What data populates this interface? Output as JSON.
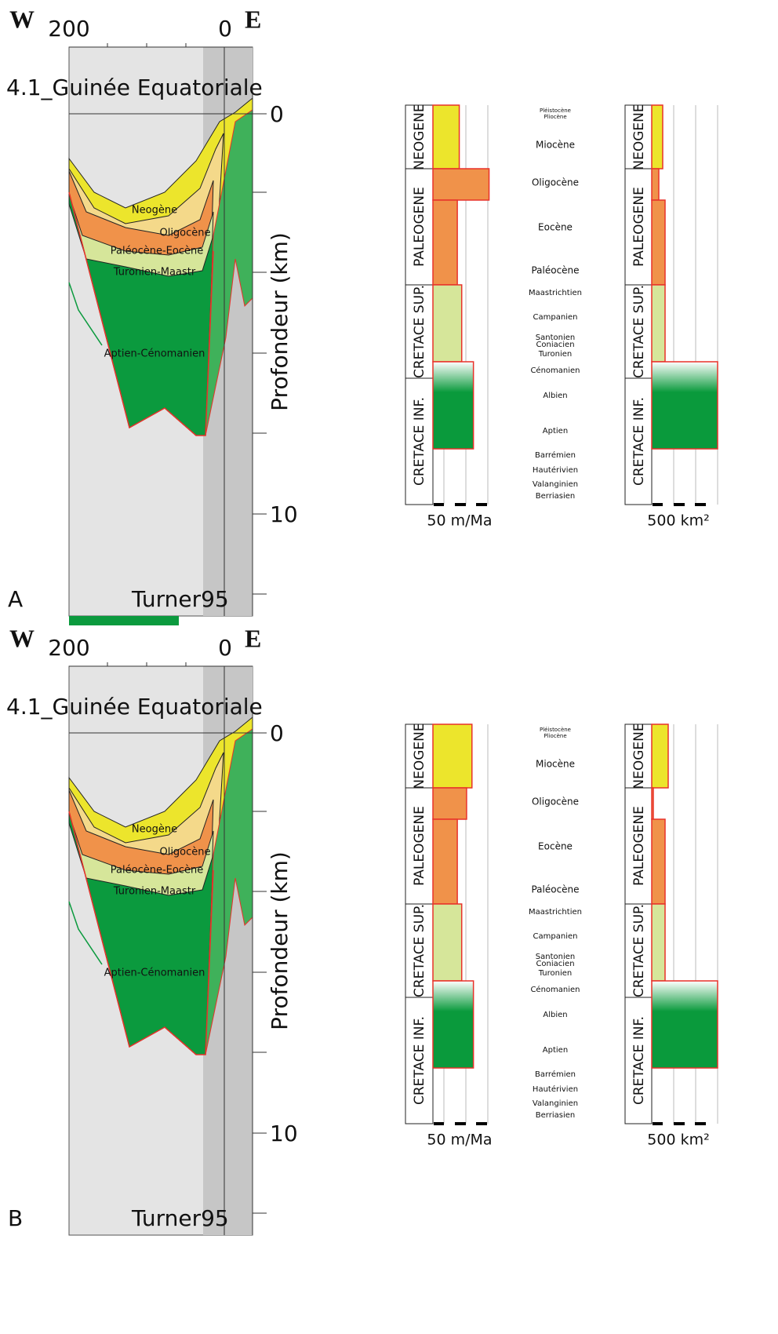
{
  "periods": [
    "NEOGENE",
    "PALEOGENE",
    "CRETACE SUP.",
    "CRETACE INF."
  ],
  "stages": [
    "Pléistocène",
    "Pliocène",
    "Miocène",
    "Oligocène",
    "Eocène",
    "Paléocène",
    "Maastrichtien",
    "Campanien",
    "Santonien",
    "Coniacien",
    "Turonien",
    "Cénomanien",
    "Albien",
    "Aptien",
    "Barrémien",
    "Hautérivien",
    "Valanginien",
    "Berriasien"
  ],
  "panels": [
    {
      "label": "A",
      "reference": "Turner95",
      "west": "W",
      "east": "E",
      "distance_ticks": [
        200,
        0
      ],
      "title": "4.1_Guinée Equatoriale",
      "depth_ticks": [
        0,
        10
      ],
      "depth_label": "Profondeur (km)",
      "layers": [
        "Neogène",
        "Oligocène",
        "Paléocène-Eocène",
        "Turonien-Maastr",
        "Aptien-Cénomanien"
      ],
      "rate": {
        "unit_label": "50 m/Ma",
        "xlim": [
          0,
          135
        ],
        "values": [
          54,
          115,
          50,
          59,
          83
        ]
      },
      "area": {
        "unit_label": "500 km²",
        "xlim": [
          0,
          1556
        ],
        "values": [
          259,
          167,
          315,
          315,
          1556
        ]
      }
    },
    {
      "label": "B",
      "reference": "Turner95",
      "west": "W",
      "east": "E",
      "distance_ticks": [
        200,
        0
      ],
      "title": "4.1_Guinée Equatoriale",
      "depth_ticks": [
        0,
        10
      ],
      "depth_label": "Profondeur (km)",
      "layers": [
        "Neogène",
        "Oligocène",
        "Paléocène-Eocène",
        "Turonien-Maastr",
        "Aptien-Cénomanien"
      ],
      "rate": {
        "unit_label": "50 m/Ma",
        "xlim": [
          0,
          135
        ],
        "values": [
          80,
          69,
          50,
          59,
          83
        ]
      },
      "area": {
        "unit_label": "500 km²",
        "xlim": [
          0,
          1556
        ],
        "values": [
          389,
          37,
          315,
          315,
          1556
        ]
      }
    }
  ]
}
